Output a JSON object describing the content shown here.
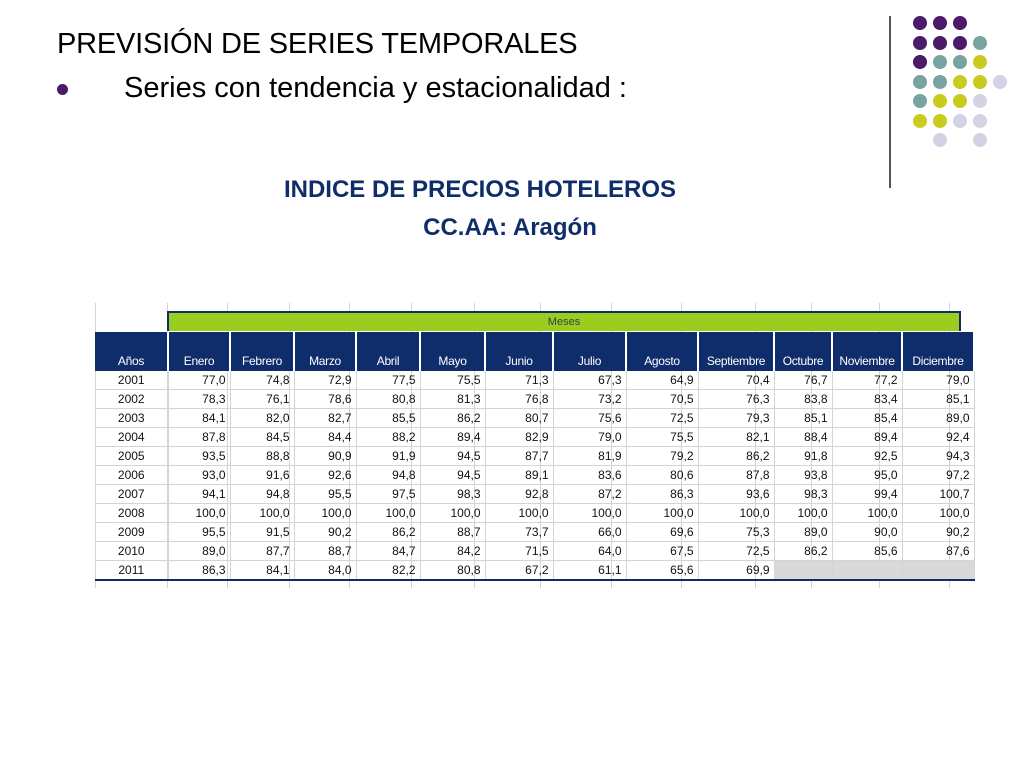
{
  "slide": {
    "title": "PREVISIÓN DE SERIES TEMPORALES",
    "bullet": "Series con tendencia y estacionalidad :",
    "subtitle_line1": "INDICE DE PRECIOS HOTELEROS",
    "subtitle_line2": "CC.AA: Aragón"
  },
  "colors": {
    "purple": "#4b1a6b",
    "teal": "#79a3a0",
    "lime": "#c9cc1f",
    "lavender": "#d4d3e6",
    "navy": "#0f2d6b",
    "green_bar": "#9acd1d",
    "header_bg": "#0f2d6b"
  },
  "table": {
    "group_header": "Meses",
    "columns": [
      "Años",
      "Enero",
      "Febrero",
      "Marzo",
      "Abril",
      "Mayo",
      "Junio",
      "Julio",
      "Agosto",
      "Septiembre",
      "Octubre",
      "Noviembre",
      "Diciembre"
    ],
    "rows": [
      [
        "2001",
        "77,0",
        "74,8",
        "72,9",
        "77,5",
        "75,5",
        "71,3",
        "67,3",
        "64,9",
        "70,4",
        "76,7",
        "77,2",
        "79,0"
      ],
      [
        "2002",
        "78,3",
        "76,1",
        "78,6",
        "80,8",
        "81,3",
        "76,8",
        "73,2",
        "70,5",
        "76,3",
        "83,8",
        "83,4",
        "85,1"
      ],
      [
        "2003",
        "84,1",
        "82,0",
        "82,7",
        "85,5",
        "86,2",
        "80,7",
        "75,6",
        "72,5",
        "79,3",
        "85,1",
        "85,4",
        "89,0"
      ],
      [
        "2004",
        "87,8",
        "84,5",
        "84,4",
        "88,2",
        "89,4",
        "82,9",
        "79,0",
        "75,5",
        "82,1",
        "88,4",
        "89,4",
        "92,4"
      ],
      [
        "2005",
        "93,5",
        "88,8",
        "90,9",
        "91,9",
        "94,5",
        "87,7",
        "81,9",
        "79,2",
        "86,2",
        "91,8",
        "92,5",
        "94,3"
      ],
      [
        "2006",
        "93,0",
        "91,6",
        "92,6",
        "94,8",
        "94,5",
        "89,1",
        "83,6",
        "80,6",
        "87,8",
        "93,8",
        "95,0",
        "97,2"
      ],
      [
        "2007",
        "94,1",
        "94,8",
        "95,5",
        "97,5",
        "98,3",
        "92,8",
        "87,2",
        "86,3",
        "93,6",
        "98,3",
        "99,4",
        "100,7"
      ],
      [
        "2008",
        "100,0",
        "100,0",
        "100,0",
        "100,0",
        "100,0",
        "100,0",
        "100,0",
        "100,0",
        "100,0",
        "100,0",
        "100,0",
        "100,0"
      ],
      [
        "2009",
        "95,5",
        "91,5",
        "90,2",
        "86,2",
        "88,7",
        "73,7",
        "66,0",
        "69,6",
        "75,3",
        "89,0",
        "90,0",
        "90,2"
      ],
      [
        "2010",
        "89,0",
        "87,7",
        "88,7",
        "84,7",
        "84,2",
        "71,5",
        "64,0",
        "67,5",
        "72,5",
        "86,2",
        "85,6",
        "87,6"
      ],
      [
        "2011",
        "86,3",
        "84,1",
        "84,0",
        "82,2",
        "80,8",
        "67,2",
        "61,1",
        "65,6",
        "69,9",
        "",
        "",
        ""
      ]
    ]
  }
}
